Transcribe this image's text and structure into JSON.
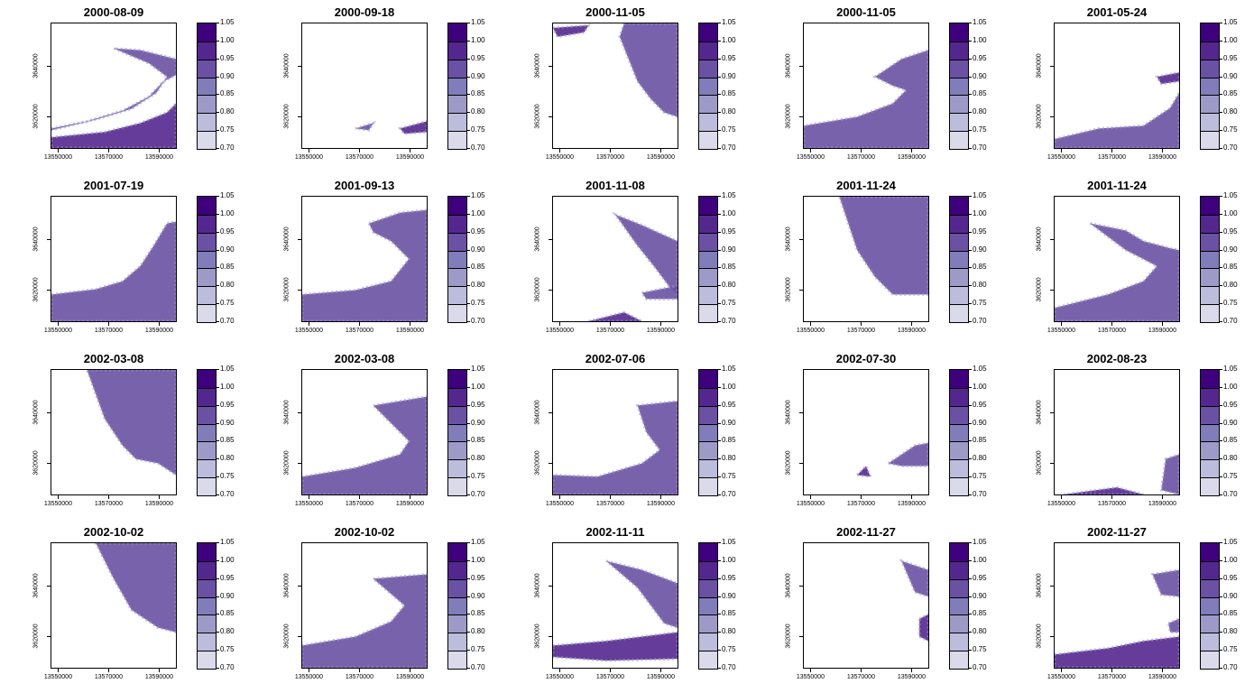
{
  "chart_data": {
    "type": "heatmap",
    "colors": {
      "palette": [
        "#ffffff",
        "#efedf5",
        "#dadaeb",
        "#bcbddc",
        "#9e9ac8",
        "#807dba",
        "#6a51a3",
        "#54278f",
        "#3f007d"
      ],
      "legend_top": "#3f007d",
      "legend_bottom": "#ffffff"
    },
    "legend_ticks": [
      "1.05",
      "1.00",
      "0.95",
      "0.90",
      "0.85",
      "0.80",
      "0.75",
      "0.70"
    ],
    "legend_values": [
      1.05,
      1.0,
      0.95,
      0.9,
      0.85,
      0.8,
      0.75,
      0.7
    ],
    "x_ticks": [
      "13550000",
      "13570000",
      "13590000"
    ],
    "x_tick_values": [
      13550000,
      13570000,
      13590000
    ],
    "y_ticks": [
      "3640000",
      "3620000"
    ],
    "y_tick_values": [
      3640000,
      3620000
    ],
    "xlim": [
      13547000,
      13597000
    ],
    "ylim": [
      3607000,
      3657000
    ],
    "panels": [
      {
        "title": "2000-08-09"
      },
      {
        "title": "2000-09-18"
      },
      {
        "title": "2000-11-05"
      },
      {
        "title": "2000-11-05"
      },
      {
        "title": "2001-05-24"
      },
      {
        "title": "2001-07-19"
      },
      {
        "title": "2001-09-13"
      },
      {
        "title": "2001-11-08"
      },
      {
        "title": "2001-11-24"
      },
      {
        "title": "2001-11-24"
      },
      {
        "title": "2002-03-08"
      },
      {
        "title": "2002-03-08"
      },
      {
        "title": "2002-07-06"
      },
      {
        "title": "2002-07-30"
      },
      {
        "title": "2002-08-23"
      },
      {
        "title": "2002-10-02"
      },
      {
        "title": "2002-10-02"
      },
      {
        "title": "2002-11-11"
      },
      {
        "title": "2002-11-27"
      },
      {
        "title": "2002-11-27"
      }
    ]
  }
}
